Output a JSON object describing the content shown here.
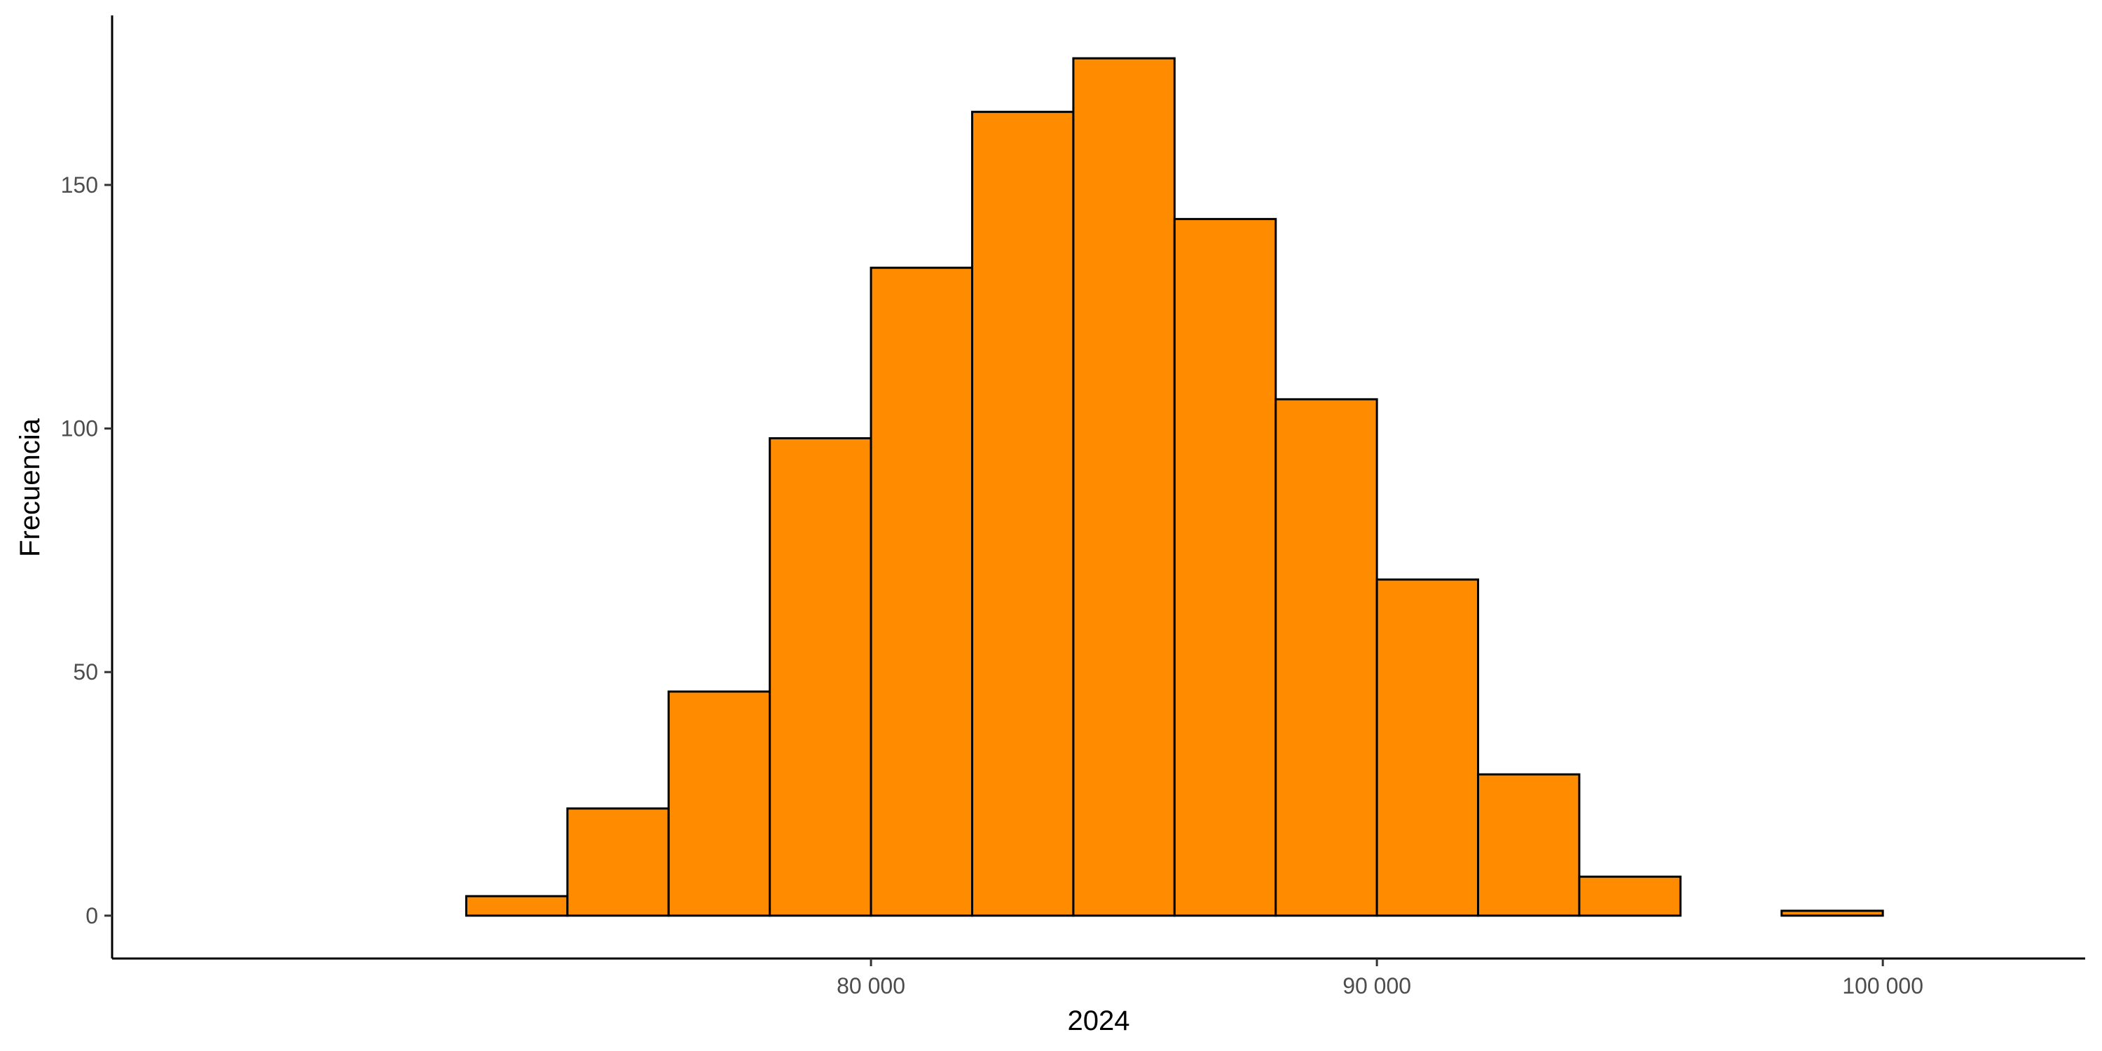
{
  "chart_data": {
    "type": "bar",
    "title": "",
    "xlabel": "2024",
    "ylabel": "Frecuencia",
    "bin_edges": [
      72000,
      74000,
      76000,
      78000,
      80000,
      82000,
      84000,
      86000,
      88000,
      90000,
      92000,
      94000,
      96000,
      98000,
      100000
    ],
    "values": [
      4,
      22,
      46,
      98,
      133,
      165,
      176,
      143,
      106,
      69,
      29,
      8,
      0,
      1
    ],
    "xlim": [
      65000,
      104000
    ],
    "ylim": [
      -8.8,
      184.8
    ],
    "x_ticks": [
      80000,
      90000,
      100000
    ],
    "x_tick_labels": [
      "80 000",
      "90 000",
      "100 000"
    ],
    "y_ticks": [
      0,
      50,
      100,
      150
    ],
    "y_tick_labels": [
      "0",
      "50",
      "100",
      "150"
    ],
    "bar_fill": "#FF8C00",
    "bar_stroke": "#000000",
    "grid": false,
    "legend": "none"
  }
}
